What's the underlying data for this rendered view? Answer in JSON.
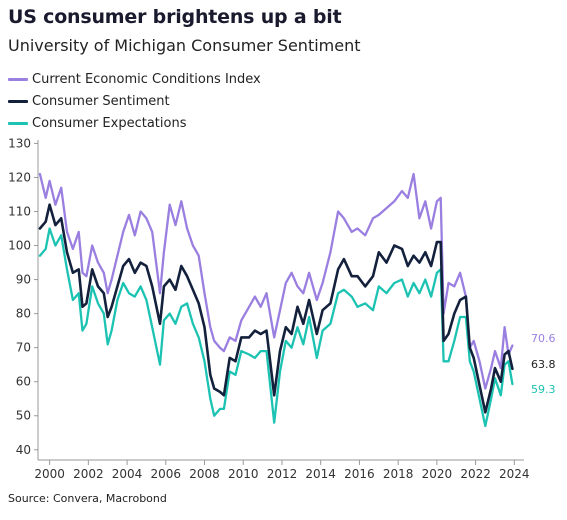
{
  "title": "US consumer brightens up a bit",
  "subtitle": "University of Michigan Consumer Sentiment",
  "source": "Source: Convera, Macrobond",
  "colors": {
    "current": "#9a7fe0",
    "sentiment": "#14213d",
    "expectations": "#1cc3b2",
    "axis": "#999999"
  },
  "chart_data": {
    "type": "line",
    "xlim": [
      1999.4,
      2024.5
    ],
    "ylim": [
      37,
      131
    ],
    "x_ticks": [
      "2000",
      "2002",
      "2004",
      "2006",
      "2008",
      "2010",
      "2012",
      "2014",
      "2016",
      "2018",
      "2020",
      "2022",
      "2024"
    ],
    "y_ticks": [
      "40",
      "50",
      "60",
      "70",
      "80",
      "90",
      "100",
      "110",
      "120",
      "130"
    ],
    "series": [
      {
        "name": "Current Economic Conditions Index",
        "color_key": "current",
        "end_label": "70.6",
        "x": [
          1999.5,
          1999.8,
          2000.0,
          2000.3,
          2000.6,
          2000.9,
          2001.2,
          2001.5,
          2001.7,
          2001.9,
          2002.2,
          2002.5,
          2002.8,
          2003.0,
          2003.2,
          2003.5,
          2003.8,
          2004.1,
          2004.4,
          2004.7,
          2005.0,
          2005.3,
          2005.7,
          2005.9,
          2006.2,
          2006.5,
          2006.8,
          2007.1,
          2007.4,
          2007.7,
          2008.0,
          2008.3,
          2008.5,
          2008.8,
          2009.0,
          2009.3,
          2009.6,
          2009.9,
          2010.3,
          2010.6,
          2010.9,
          2011.2,
          2011.6,
          2011.9,
          2012.2,
          2012.5,
          2012.8,
          2013.1,
          2013.4,
          2013.8,
          2014.1,
          2014.5,
          2014.9,
          2015.2,
          2015.6,
          2015.9,
          2016.3,
          2016.7,
          2017.0,
          2017.4,
          2017.8,
          2018.2,
          2018.5,
          2018.8,
          2019.1,
          2019.4,
          2019.7,
          2020.0,
          2020.2,
          2020.35,
          2020.6,
          2020.9,
          2021.2,
          2021.5,
          2021.7,
          2021.9,
          2022.2,
          2022.5,
          2022.8,
          2023.0,
          2023.3,
          2023.5,
          2023.7,
          2023.9
        ],
        "values": [
          121,
          114,
          119,
          112,
          117,
          104,
          99,
          104,
          92,
          91,
          100,
          95,
          92,
          86,
          90,
          97,
          104,
          109,
          103,
          110,
          108,
          104,
          86,
          98,
          112,
          106,
          113,
          105,
          100,
          97,
          86,
          76,
          72,
          70,
          69,
          73,
          72,
          78,
          82,
          85,
          82,
          86,
          73,
          81,
          89,
          92,
          88,
          86,
          92,
          84,
          89,
          98,
          110,
          108,
          104,
          105,
          103,
          108,
          109,
          111,
          113,
          116,
          114,
          121,
          108,
          113,
          105,
          113,
          114,
          80,
          89,
          88,
          92,
          85,
          70,
          72,
          66,
          58,
          64,
          69,
          64,
          76,
          68,
          70.6
        ]
      },
      {
        "name": "Consumer Sentiment",
        "color_key": "sentiment",
        "end_label": "63.8",
        "x": [
          1999.5,
          1999.8,
          2000.0,
          2000.3,
          2000.6,
          2000.9,
          2001.2,
          2001.5,
          2001.7,
          2001.9,
          2002.2,
          2002.5,
          2002.8,
          2003.0,
          2003.2,
          2003.5,
          2003.8,
          2004.1,
          2004.4,
          2004.7,
          2005.0,
          2005.3,
          2005.7,
          2005.9,
          2006.2,
          2006.5,
          2006.8,
          2007.1,
          2007.4,
          2007.7,
          2008.0,
          2008.3,
          2008.5,
          2008.8,
          2009.0,
          2009.3,
          2009.6,
          2009.9,
          2010.3,
          2010.6,
          2010.9,
          2011.2,
          2011.6,
          2011.9,
          2012.2,
          2012.5,
          2012.8,
          2013.1,
          2013.4,
          2013.8,
          2014.1,
          2014.5,
          2014.9,
          2015.2,
          2015.6,
          2015.9,
          2016.3,
          2016.7,
          2017.0,
          2017.4,
          2017.8,
          2018.2,
          2018.5,
          2018.8,
          2019.1,
          2019.4,
          2019.7,
          2020.0,
          2020.2,
          2020.35,
          2020.6,
          2020.9,
          2021.2,
          2021.5,
          2021.7,
          2021.9,
          2022.2,
          2022.5,
          2022.8,
          2023.0,
          2023.3,
          2023.5,
          2023.7,
          2023.9
        ],
        "values": [
          105,
          107,
          112,
          106,
          108,
          98,
          92,
          93,
          82,
          83,
          93,
          88,
          86,
          79,
          82,
          88,
          94,
          96,
          92,
          95,
          94,
          88,
          77,
          88,
          90,
          87,
          94,
          91,
          87,
          83,
          76,
          62,
          58,
          57,
          56,
          67,
          66,
          73,
          73,
          75,
          74,
          75,
          56,
          69,
          76,
          74,
          82,
          77,
          84,
          74,
          81,
          83,
          93,
          96,
          91,
          91,
          88,
          91,
          98,
          95,
          100,
          99,
          94,
          97,
          95,
          98,
          94,
          101,
          101,
          72,
          74,
          80,
          84,
          85,
          70,
          67,
          59,
          51,
          58,
          64,
          60,
          68,
          69,
          63.8
        ]
      },
      {
        "name": "Consumer Expectations",
        "color_key": "expectations",
        "end_label": "59.3",
        "x": [
          1999.5,
          1999.8,
          2000.0,
          2000.3,
          2000.6,
          2000.9,
          2001.2,
          2001.5,
          2001.7,
          2001.9,
          2002.2,
          2002.5,
          2002.8,
          2003.0,
          2003.2,
          2003.5,
          2003.8,
          2004.1,
          2004.4,
          2004.7,
          2005.0,
          2005.3,
          2005.7,
          2005.9,
          2006.2,
          2006.5,
          2006.8,
          2007.1,
          2007.4,
          2007.7,
          2008.0,
          2008.3,
          2008.5,
          2008.8,
          2009.0,
          2009.3,
          2009.6,
          2009.9,
          2010.3,
          2010.6,
          2010.9,
          2011.2,
          2011.6,
          2011.9,
          2012.2,
          2012.5,
          2012.8,
          2013.1,
          2013.4,
          2013.8,
          2014.1,
          2014.5,
          2014.9,
          2015.2,
          2015.6,
          2015.9,
          2016.3,
          2016.7,
          2017.0,
          2017.4,
          2017.8,
          2018.2,
          2018.5,
          2018.8,
          2019.1,
          2019.4,
          2019.7,
          2020.0,
          2020.2,
          2020.35,
          2020.6,
          2020.9,
          2021.2,
          2021.5,
          2021.7,
          2021.9,
          2022.2,
          2022.5,
          2022.8,
          2023.0,
          2023.3,
          2023.5,
          2023.7,
          2023.9
        ],
        "values": [
          97,
          99,
          105,
          100,
          103,
          93,
          84,
          86,
          75,
          77,
          88,
          83,
          80,
          71,
          75,
          84,
          89,
          86,
          85,
          88,
          84,
          76,
          65,
          78,
          80,
          77,
          82,
          83,
          77,
          73,
          66,
          55,
          50,
          52,
          52,
          63,
          62,
          69,
          68,
          67,
          69,
          69,
          48,
          63,
          72,
          70,
          76,
          71,
          79,
          67,
          75,
          77,
          86,
          87,
          85,
          82,
          83,
          81,
          88,
          86,
          89,
          90,
          85,
          89,
          86,
          90,
          85,
          92,
          93,
          66,
          66,
          72,
          79,
          79,
          66,
          63,
          55,
          47,
          55,
          61,
          56,
          65,
          66,
          59.3
        ]
      }
    ]
  }
}
